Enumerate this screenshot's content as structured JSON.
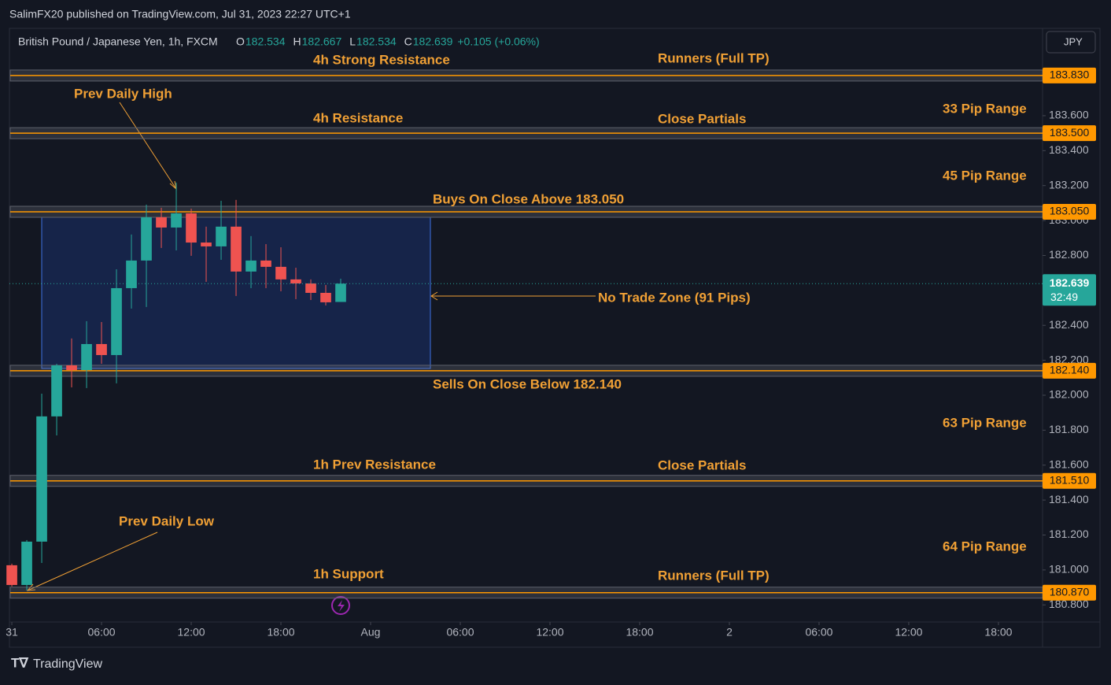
{
  "header": "SalimFX20 published on TradingView.com, Jul 31, 2023 22:27 UTC+1",
  "currency": "JPY",
  "footer": "TradingView",
  "chart_data": {
    "type": "candlestick",
    "title": "British Pound / Japanese Yen, 1h, FXCM",
    "ohlc_labels": [
      "O",
      "H",
      "L",
      "C"
    ],
    "change_label": "+0.105 (+0.06%)",
    "x": [
      0,
      1,
      2,
      3,
      4,
      5,
      6,
      7,
      8,
      9,
      10,
      11,
      12,
      13,
      14,
      15,
      16,
      17,
      18,
      19,
      20,
      21,
      22
    ],
    "open": [
      181.027,
      180.914,
      181.162,
      181.879,
      182.171,
      182.144,
      182.293,
      182.23,
      182.613,
      182.771,
      183.019,
      182.96,
      183.041,
      182.874,
      182.852,
      182.965,
      182.708,
      182.771,
      182.735,
      182.663,
      182.64,
      182.586,
      182.534
    ],
    "high": [
      181.036,
      181.171,
      182.009,
      182.18,
      182.325,
      182.424,
      182.419,
      182.721,
      182.92,
      183.091,
      183.073,
      183.217,
      183.068,
      182.965,
      183.113,
      183.118,
      182.911,
      182.865,
      182.847,
      182.73,
      182.663,
      182.631,
      182.667
    ],
    "low": [
      180.905,
      180.883,
      181.04,
      181.77,
      182.045,
      182.041,
      182.18,
      182.068,
      182.496,
      182.505,
      182.843,
      182.829,
      182.798,
      182.649,
      182.775,
      182.568,
      182.613,
      182.613,
      182.595,
      182.55,
      182.545,
      182.514,
      182.534
    ],
    "close": [
      180.914,
      181.162,
      181.879,
      182.171,
      182.144,
      182.293,
      182.23,
      182.613,
      182.771,
      183.019,
      182.96,
      183.041,
      182.874,
      182.852,
      182.965,
      182.708,
      182.771,
      182.735,
      182.663,
      182.64,
      182.586,
      182.532,
      182.639
    ],
    "up_color": "#26a69a",
    "down_color": "#ef5350",
    "ylim": [
      180.702,
      184.1
    ],
    "yticks": [
      {
        "value": 180.8,
        "label": "180.800"
      },
      {
        "value": 181,
        "label": "181.000"
      },
      {
        "value": 181.2,
        "label": "181.200"
      },
      {
        "value": 181.4,
        "label": "181.400"
      },
      {
        "value": 181.6,
        "label": "181.600"
      },
      {
        "value": 181.8,
        "label": "181.800"
      },
      {
        "value": 182,
        "label": "182.000"
      },
      {
        "value": 182.2,
        "label": "182.200"
      },
      {
        "value": 182.4,
        "label": "182.400"
      },
      {
        "value": 182.6,
        "label": "182.600"
      },
      {
        "value": 182.8,
        "label": "182.800"
      },
      {
        "value": 183,
        "label": "183.000"
      },
      {
        "value": 183.2,
        "label": "183.200"
      },
      {
        "value": 183.4,
        "label": "183.400"
      },
      {
        "value": 183.6,
        "label": "183.600"
      }
    ],
    "xlim": [
      -0.16,
      68.95
    ],
    "xticks": [
      {
        "value": 0,
        "label": "31"
      },
      {
        "value": 6,
        "label": "06:00"
      },
      {
        "value": 12,
        "label": "12:00"
      },
      {
        "value": 18,
        "label": "18:00"
      },
      {
        "value": 24,
        "label": "Aug"
      },
      {
        "value": 30,
        "label": "06:00"
      },
      {
        "value": 36,
        "label": "12:00"
      },
      {
        "value": 42,
        "label": "18:00"
      },
      {
        "value": 48,
        "label": "2"
      },
      {
        "value": 54,
        "label": "06:00"
      },
      {
        "value": 60,
        "label": "12:00"
      },
      {
        "value": 66,
        "label": "18:00"
      }
    ],
    "levels": [
      {
        "value": 183.83,
        "label": "183.830"
      },
      {
        "value": 183.5,
        "label": "183.500"
      },
      {
        "value": 183.05,
        "label": "183.050"
      },
      {
        "value": 182.14,
        "label": "182.140"
      },
      {
        "value": 181.51,
        "label": "181.510"
      },
      {
        "value": 180.87,
        "label": "180.870"
      }
    ],
    "level_color": "#ff9800",
    "countdown": "32:49",
    "annotations": [
      "4h Strong Resistance",
      "Runners (Full TP)",
      "Prev Daily High",
      "33 Pip Range",
      "4h Resistance",
      "Close Partials",
      "45 Pip Range",
      "Buys On Close Above 183.050",
      "No Trade Zone (91 Pips)",
      "Sells On Close Below 182.140",
      "63 Pip Range",
      "1h Prev Resistance",
      "Close Partials",
      "Prev Daily Low",
      "64 Pip Range",
      "1h Support",
      "Runners (Full TP)"
    ]
  }
}
